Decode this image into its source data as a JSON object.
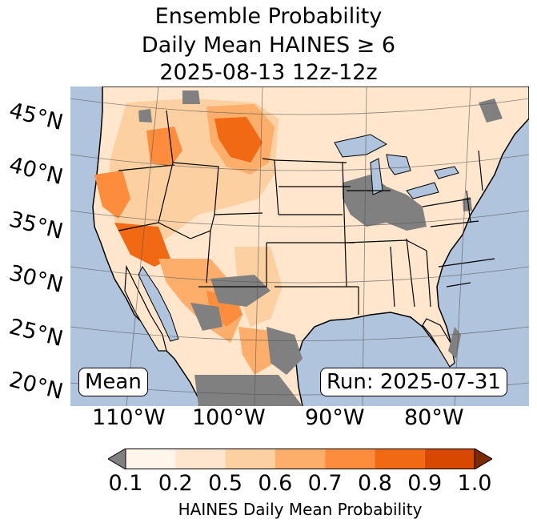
{
  "title": {
    "line1": "Ensemble Probability",
    "line2": "Daily Mean HAINES ≥ 6",
    "line3": "2025-08-13 12z-12z"
  },
  "map": {
    "stat_label": "Mean",
    "run_label": "Run: 2025-07-31",
    "lat_labels": [
      "45°N",
      "40°N",
      "35°N",
      "30°N",
      "25°N",
      "20°N"
    ],
    "lon_labels": [
      "110°W",
      "100°W",
      "90°W",
      "80°W"
    ],
    "colors": {
      "ocean": "#b0c4de",
      "land": "#ffe6cc",
      "no_data": "#808080",
      "lake": "#b0c4de"
    }
  },
  "colorbar": {
    "label": "HAINES Daily Mean Probability",
    "ticks": [
      "0.1",
      "0.2",
      "0.5",
      "0.6",
      "0.7",
      "0.8",
      "0.9",
      "1.0"
    ],
    "under_color": "#808080",
    "over_color": "#7a2a05",
    "colors": [
      "#fff5eb",
      "#fee6ce",
      "#fdd0a2",
      "#fdae6b",
      "#fd8d3c",
      "#f16913",
      "#d94801"
    ]
  }
}
